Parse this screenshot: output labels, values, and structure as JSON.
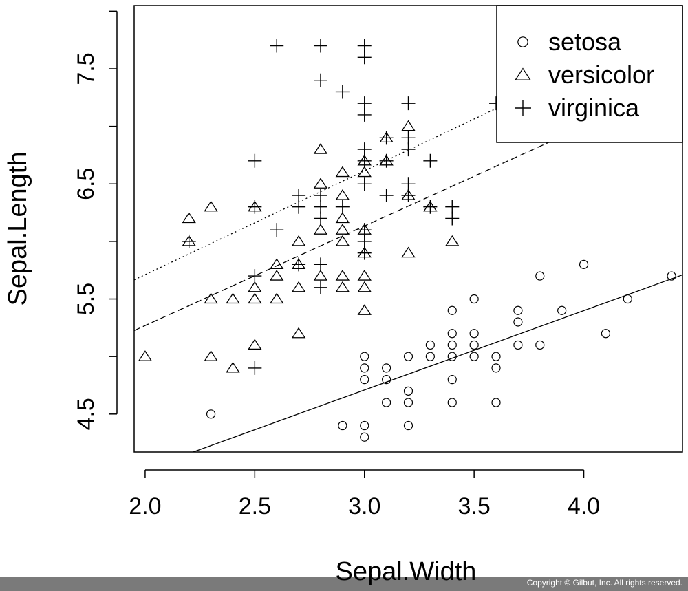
{
  "chart_data": {
    "type": "scatter",
    "title": "",
    "xlabel": "Sepal.Width",
    "ylabel": "Sepal.Length",
    "xlim": [
      1.95,
      4.45
    ],
    "ylim": [
      4.17,
      8.05
    ],
    "x_ticks": [
      2.0,
      2.5,
      3.0,
      3.5,
      4.0
    ],
    "x_tick_labels": [
      "2.0",
      "2.5",
      "3.0",
      "3.5",
      "4.0"
    ],
    "y_ticks": [
      4.5,
      5.0,
      5.5,
      6.0,
      6.5,
      7.0,
      7.5,
      8.0
    ],
    "y_tick_labels": [
      "4.5",
      "",
      "5.5",
      "",
      "6.5",
      "",
      "7.5",
      ""
    ],
    "grid": false,
    "legend_position": "top-right",
    "series": [
      {
        "name": "setosa",
        "marker": "circle",
        "points": [
          [
            2.3,
            4.5
          ],
          [
            2.9,
            4.4
          ],
          [
            3.0,
            4.4
          ],
          [
            3.0,
            4.3
          ],
          [
            3.2,
            4.4
          ],
          [
            3.2,
            4.6
          ],
          [
            3.2,
            4.7
          ],
          [
            3.1,
            4.6
          ],
          [
            3.0,
            4.8
          ],
          [
            3.0,
            4.9
          ],
          [
            3.0,
            5.0
          ],
          [
            3.1,
            4.8
          ],
          [
            3.1,
            4.9
          ],
          [
            3.2,
            5.0
          ],
          [
            3.3,
            5.0
          ],
          [
            3.3,
            5.1
          ],
          [
            3.4,
            4.6
          ],
          [
            3.4,
            4.8
          ],
          [
            3.4,
            5.0
          ],
          [
            3.4,
            5.1
          ],
          [
            3.4,
            5.2
          ],
          [
            3.4,
            5.4
          ],
          [
            3.5,
            5.0
          ],
          [
            3.5,
            5.1
          ],
          [
            3.5,
            5.2
          ],
          [
            3.5,
            5.5
          ],
          [
            3.6,
            4.6
          ],
          [
            3.6,
            4.9
          ],
          [
            3.6,
            5.0
          ],
          [
            3.7,
            5.1
          ],
          [
            3.7,
            5.3
          ],
          [
            3.7,
            5.4
          ],
          [
            3.8,
            5.1
          ],
          [
            3.8,
            5.7
          ],
          [
            3.9,
            5.4
          ],
          [
            4.0,
            5.8
          ],
          [
            4.1,
            5.2
          ],
          [
            4.2,
            5.5
          ],
          [
            4.4,
            5.7
          ]
        ],
        "fit": {
          "intercept": 2.639,
          "slope": 0.69
        }
      },
      {
        "name": "versicolor",
        "marker": "triangle",
        "points": [
          [
            2.0,
            5.0
          ],
          [
            2.2,
            6.2
          ],
          [
            2.2,
            6.0
          ],
          [
            2.3,
            6.3
          ],
          [
            2.3,
            5.5
          ],
          [
            2.3,
            5.0
          ],
          [
            2.4,
            5.5
          ],
          [
            2.4,
            4.9
          ],
          [
            2.5,
            6.3
          ],
          [
            2.5,
            5.6
          ],
          [
            2.5,
            5.5
          ],
          [
            2.5,
            5.1
          ],
          [
            2.6,
            5.8
          ],
          [
            2.6,
            5.7
          ],
          [
            2.6,
            5.5
          ],
          [
            2.7,
            6.0
          ],
          [
            2.7,
            5.8
          ],
          [
            2.7,
            5.6
          ],
          [
            2.7,
            5.2
          ],
          [
            2.8,
            6.8
          ],
          [
            2.8,
            6.5
          ],
          [
            2.8,
            6.1
          ],
          [
            2.8,
            5.7
          ],
          [
            2.9,
            6.6
          ],
          [
            2.9,
            6.4
          ],
          [
            2.9,
            6.2
          ],
          [
            2.9,
            6.1
          ],
          [
            2.9,
            6.0
          ],
          [
            2.9,
            5.7
          ],
          [
            2.9,
            5.6
          ],
          [
            3.0,
            6.7
          ],
          [
            3.0,
            6.6
          ],
          [
            3.0,
            6.1
          ],
          [
            3.0,
            5.9
          ],
          [
            3.0,
            5.7
          ],
          [
            3.0,
            5.6
          ],
          [
            3.0,
            5.4
          ],
          [
            3.1,
            6.9
          ],
          [
            3.1,
            6.7
          ],
          [
            3.2,
            7.0
          ],
          [
            3.2,
            6.4
          ],
          [
            3.2,
            5.9
          ],
          [
            3.3,
            6.3
          ],
          [
            3.4,
            6.0
          ]
        ],
        "fit": {
          "intercept": 3.539,
          "slope": 0.865
        }
      },
      {
        "name": "virginica",
        "marker": "plus",
        "points": [
          [
            2.2,
            6.0
          ],
          [
            2.5,
            6.7
          ],
          [
            2.5,
            6.3
          ],
          [
            2.5,
            5.7
          ],
          [
            2.5,
            4.9
          ],
          [
            2.6,
            7.7
          ],
          [
            2.6,
            6.1
          ],
          [
            2.7,
            6.4
          ],
          [
            2.7,
            6.3
          ],
          [
            2.7,
            5.8
          ],
          [
            2.8,
            7.7
          ],
          [
            2.8,
            7.4
          ],
          [
            2.8,
            6.4
          ],
          [
            2.8,
            6.3
          ],
          [
            2.8,
            6.2
          ],
          [
            2.8,
            5.8
          ],
          [
            2.8,
            5.6
          ],
          [
            2.9,
            7.3
          ],
          [
            2.9,
            6.3
          ],
          [
            3.0,
            7.7
          ],
          [
            3.0,
            7.6
          ],
          [
            3.0,
            7.2
          ],
          [
            3.0,
            7.1
          ],
          [
            3.0,
            6.8
          ],
          [
            3.0,
            6.7
          ],
          [
            3.0,
            6.5
          ],
          [
            3.0,
            6.1
          ],
          [
            3.0,
            6.0
          ],
          [
            3.0,
            5.9
          ],
          [
            3.1,
            6.9
          ],
          [
            3.1,
            6.7
          ],
          [
            3.1,
            6.4
          ],
          [
            3.2,
            7.2
          ],
          [
            3.2,
            6.9
          ],
          [
            3.2,
            6.8
          ],
          [
            3.2,
            6.5
          ],
          [
            3.2,
            6.4
          ],
          [
            3.3,
            6.7
          ],
          [
            3.3,
            6.3
          ],
          [
            3.4,
            6.3
          ],
          [
            3.4,
            6.2
          ],
          [
            3.6,
            7.2
          ]
        ],
        "fit": {
          "intercept": 3.907,
          "slope": 0.902
        }
      }
    ]
  },
  "footer": {
    "copyright": "Copyright © Gilbut, Inc. All rights reserved."
  }
}
